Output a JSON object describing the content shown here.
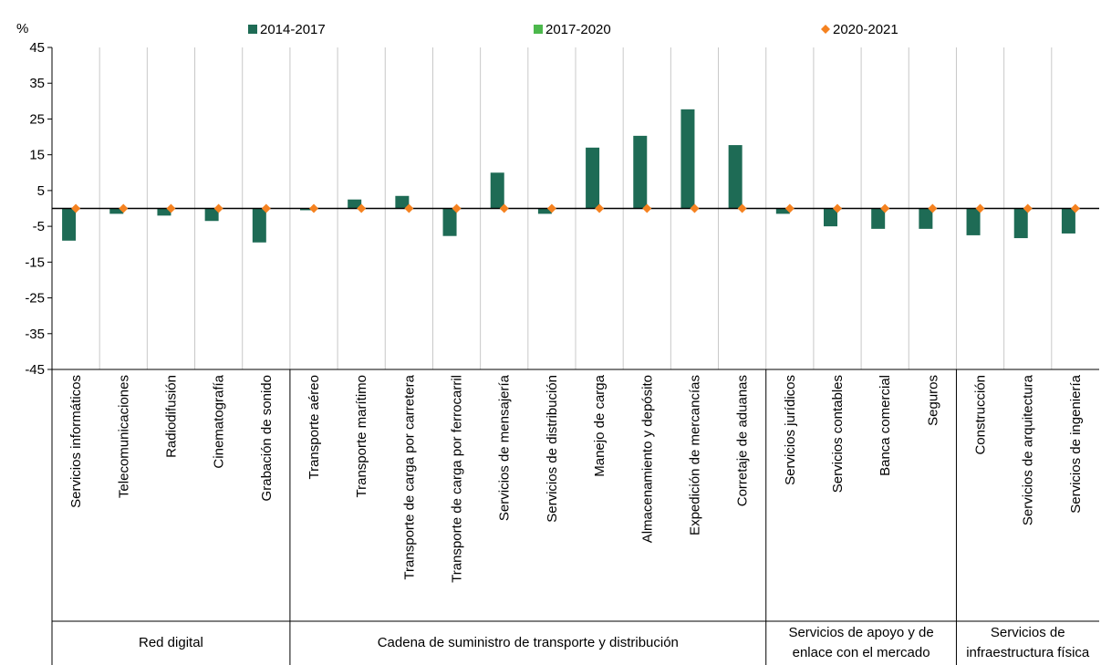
{
  "chart_data": {
    "type": "bar",
    "y_label": "%",
    "categories": [
      "Servicios informáticos",
      "Telecomunicaciones",
      "Radiodifusión",
      "Cinematografía",
      "Grabación de sonido",
      "Transporte aéreo",
      "Transporte marítimo",
      "Transporte de carga por carretera",
      "Transporte de carga por ferrocarril",
      "Servicios de mensajería",
      "Servicios de distribución",
      "Manejo de carga",
      "Almacenamiento y depósito",
      "Expedición de mercancías",
      "Corretaje de aduanas",
      "Servicios jurídicos",
      "Servicios contables",
      "Banca comercial",
      "Seguros",
      "Construcción",
      "Servicios de arquitectura",
      "Servicios de ingeniería"
    ],
    "groups": [
      {
        "name": "Red digital",
        "count": 5
      },
      {
        "name": "Cadena de suministro de transporte y distribución",
        "count": 10
      },
      {
        "name": "Servicios de apoyo y de enlace con el mercado",
        "count": 4
      },
      {
        "name": "Servicios de infraestructura física",
        "count": 3
      }
    ],
    "series": [
      {
        "name": "2014-2017",
        "color": "#1e6b55",
        "marker": "bar",
        "values": [
          -9,
          -1.5,
          -2,
          -3.5,
          -9.5,
          -0.5,
          2.5,
          3.5,
          -7.7,
          10,
          -1.5,
          17,
          20.3,
          27.7,
          17.7,
          -1.5,
          -5,
          -5.7,
          -5.7,
          -7.5,
          -8.3,
          -7
        ]
      },
      {
        "name": "2017-2020",
        "color": "#4cb84c",
        "marker": "bar",
        "values": [
          0,
          0,
          0,
          0,
          0,
          0,
          0,
          0,
          0,
          0,
          0,
          0,
          0,
          0,
          0,
          0,
          0,
          0,
          0,
          0,
          0,
          0
        ]
      },
      {
        "name": "2020-2021",
        "color": "#f58220",
        "marker": "diamond",
        "values": [
          0,
          0,
          0,
          0,
          0,
          0,
          0,
          0,
          0,
          0,
          0,
          0,
          0,
          0,
          0,
          0,
          0,
          0,
          0,
          0,
          0,
          0
        ]
      }
    ],
    "ylim": [
      -45,
      45
    ],
    "yticks": [
      45,
      35,
      25,
      15,
      5,
      -5,
      -15,
      -25,
      -35,
      -45
    ],
    "grid": "x"
  }
}
